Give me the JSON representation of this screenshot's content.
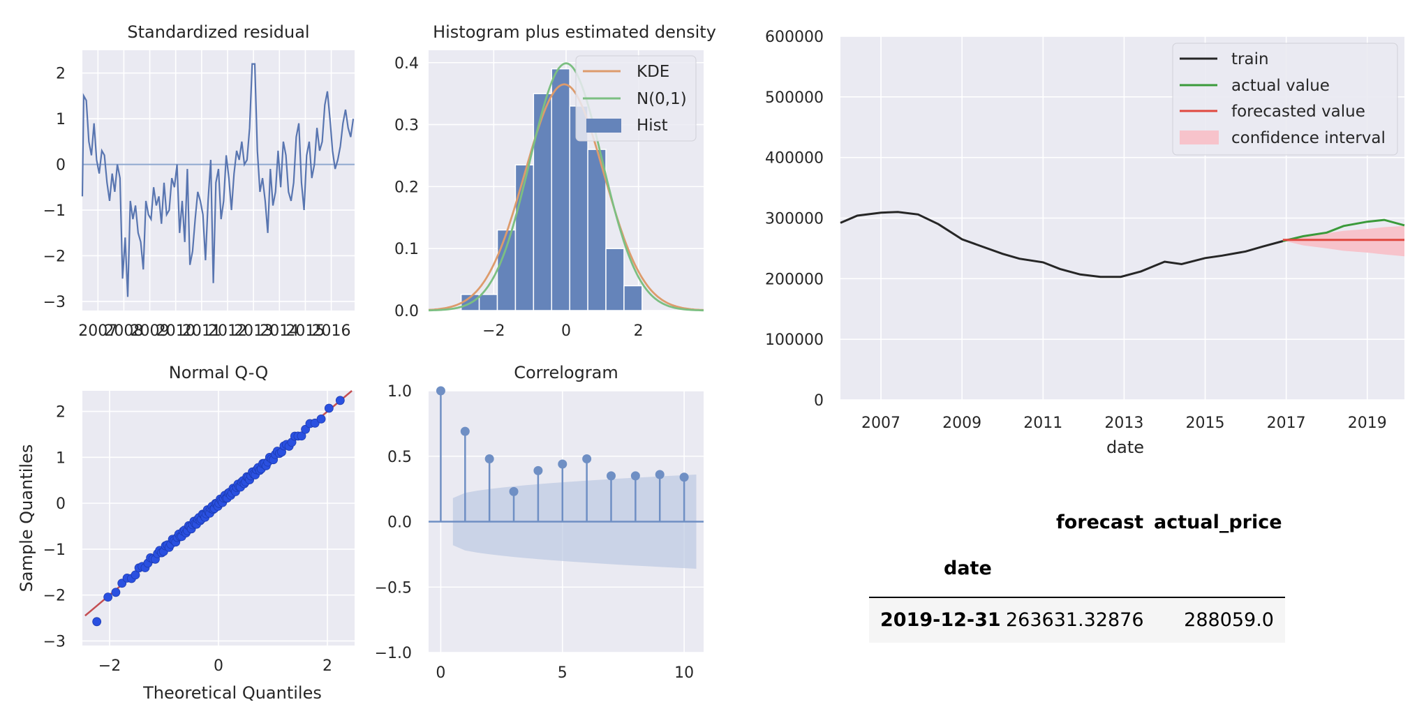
{
  "chart_data": [
    {
      "type": "line",
      "title": "Standardized residual",
      "xlabel": "",
      "ylabel": "",
      "xlim": [
        2006.4,
        2016.9
      ],
      "ylim": [
        -3.2,
        2.5
      ],
      "x_ticks": [
        "2007",
        "2008",
        "2009",
        "2010",
        "2011",
        "2012",
        "2013",
        "2014",
        "2015",
        "2016"
      ],
      "y_ticks": [
        2,
        1,
        0,
        -1,
        -2,
        -3
      ],
      "zero_line": 0,
      "series": [
        {
          "x": [
            2006.4,
            2006.45,
            2006.55,
            2006.65,
            2006.75,
            2006.85,
            2006.95,
            2007.05,
            2007.15,
            2007.25,
            2007.35,
            2007.45,
            2007.55,
            2007.65,
            2007.75,
            2007.85,
            2007.95,
            2008.05,
            2008.15,
            2008.25,
            2008.35,
            2008.45,
            2008.55,
            2008.65,
            2008.75,
            2008.85,
            2008.95,
            2009.05,
            2009.15,
            2009.25,
            2009.35,
            2009.45,
            2009.55,
            2009.65,
            2009.75,
            2009.85,
            2009.95,
            2010.05,
            2010.15,
            2010.25,
            2010.35,
            2010.45,
            2010.55,
            2010.65,
            2010.75,
            2010.85,
            2010.95,
            2011.05,
            2011.15,
            2011.25,
            2011.35,
            2011.45,
            2011.55,
            2011.65,
            2011.75,
            2011.85,
            2011.95,
            2012.05,
            2012.15,
            2012.25,
            2012.35,
            2012.45,
            2012.55,
            2012.65,
            2012.75,
            2012.85,
            2012.95,
            2013.05,
            2013.15,
            2013.25,
            2013.35,
            2013.45,
            2013.55,
            2013.65,
            2013.75,
            2013.85,
            2013.95,
            2014.05,
            2014.15,
            2014.25,
            2014.35,
            2014.45,
            2014.55,
            2014.65,
            2014.75,
            2014.85,
            2014.95,
            2015.05,
            2015.15,
            2015.25,
            2015.35,
            2015.45,
            2015.55,
            2015.65,
            2015.75,
            2015.85,
            2015.95,
            2016.05,
            2016.15,
            2016.25,
            2016.35,
            2016.45,
            2016.55,
            2016.65,
            2016.75,
            2016.85
          ],
          "y": [
            -0.7,
            1.5,
            1.4,
            0.5,
            0.2,
            0.9,
            0.1,
            -0.2,
            0.3,
            0.2,
            -0.4,
            -0.8,
            -0.2,
            -0.6,
            0.0,
            -0.3,
            -2.5,
            -1.6,
            -2.9,
            -0.8,
            -1.2,
            -0.9,
            -1.5,
            -1.7,
            -2.3,
            -0.8,
            -1.1,
            -1.2,
            -0.5,
            -0.9,
            -0.7,
            -1.3,
            -0.4,
            -1.1,
            -1.0,
            -0.3,
            -0.5,
            0.0,
            -1.5,
            -0.8,
            -1.7,
            -0.1,
            -2.2,
            -1.9,
            -1.2,
            -0.6,
            -0.8,
            -1.1,
            -2.1,
            -0.8,
            0.1,
            -2.6,
            -0.4,
            -0.1,
            -1.2,
            -0.8,
            0.2,
            -0.3,
            -1.0,
            -0.2,
            0.3,
            0.1,
            0.5,
            0.0,
            0.1,
            0.8,
            2.2,
            2.2,
            0.3,
            -0.6,
            -0.3,
            -0.8,
            -1.5,
            -0.1,
            -0.9,
            -0.6,
            0.3,
            -0.5,
            0.5,
            0.2,
            -0.6,
            -0.8,
            -0.4,
            0.6,
            0.9,
            -0.4,
            -1.0,
            0.2,
            0.5,
            -0.3,
            0.0,
            0.8,
            0.3,
            0.5,
            1.3,
            1.6,
            1.0,
            0.3,
            -0.1,
            0.1,
            0.4,
            0.9,
            1.2,
            0.8,
            0.6,
            1.0
          ]
        }
      ]
    },
    {
      "type": "bar",
      "title": "Histogram plus estimated density",
      "xlabel": "",
      "ylabel": "",
      "xlim": [
        -3.8,
        3.8
      ],
      "ylim": [
        0,
        0.42
      ],
      "x_ticks": [
        "−2",
        "0",
        "2"
      ],
      "y_ticks": [
        "0.4",
        "0.3",
        "0.2",
        "0.1",
        "0.0"
      ],
      "legend": [
        "KDE",
        "N(0,1)",
        "Hist"
      ],
      "hist_edges": [
        -2.9,
        -2.4,
        -1.9,
        -1.4,
        -0.9,
        -0.4,
        0.1,
        0.6,
        1.1,
        1.6,
        2.1
      ],
      "hist_values": [
        0.026,
        0.026,
        0.13,
        0.235,
        0.35,
        0.39,
        0.33,
        0.26,
        0.1,
        0.04
      ],
      "kde_peak": 0.365,
      "legend_position": "upper right"
    },
    {
      "type": "scatter",
      "title": "Normal Q-Q",
      "xlabel": "Theoretical Quantiles",
      "ylabel": "Sample Quantiles",
      "xlim": [
        -2.5,
        2.5
      ],
      "ylim": [
        -3.1,
        2.45
      ],
      "x_ticks": [
        "−2",
        "0",
        "2"
      ],
      "y_ticks": [
        "2",
        "1",
        "0",
        "−1",
        "−2",
        "−3"
      ],
      "reference_line": {
        "slope": 1,
        "intercept": 0
      }
    },
    {
      "type": "bar",
      "title": "Correlogram",
      "xlabel": "",
      "ylabel": "",
      "xlim": [
        -0.5,
        10.8
      ],
      "ylim": [
        -1.0,
        1.0
      ],
      "x_ticks": [
        "0",
        "5",
        "10"
      ],
      "y_ticks": [
        "1.0",
        "0.5",
        "0.0",
        "−0.5",
        "−1.0"
      ],
      "lags": [
        0,
        1,
        2,
        3,
        4,
        5,
        6,
        7,
        8,
        9,
        10
      ],
      "values": [
        1.0,
        0.69,
        0.48,
        0.23,
        0.39,
        0.44,
        0.48,
        0.35,
        0.35,
        0.36,
        0.34
      ],
      "confidence_band": {
        "from": 0.18,
        "to": 0.36
      }
    },
    {
      "type": "line",
      "title": "",
      "xlabel": "date",
      "ylabel": "",
      "xlim": [
        "2006-01",
        "2019-12"
      ],
      "ylim": [
        0,
        600000
      ],
      "x_ticks": [
        "2007",
        "2009",
        "2011",
        "2013",
        "2015",
        "2017",
        "2019"
      ],
      "y_ticks": [
        "600000",
        "500000",
        "400000",
        "300000",
        "200000",
        "100000",
        "0"
      ],
      "legend": [
        "train",
        "actual value",
        "forecasted value",
        "confidence interval"
      ],
      "legend_position": "upper right",
      "series": [
        {
          "name": "train",
          "color": "#262626",
          "x": [
            "2006-01",
            "2006-06",
            "2007-01",
            "2007-06",
            "2007-12",
            "2008-06",
            "2009-01",
            "2009-06",
            "2010-01",
            "2010-06",
            "2011-01",
            "2011-06",
            "2011-12",
            "2012-06",
            "2012-12",
            "2013-06",
            "2014-01",
            "2014-06",
            "2015-01",
            "2015-06",
            "2016-01",
            "2016-06",
            "2016-12"
          ],
          "y": [
            292000,
            304000,
            309000,
            310000,
            306000,
            290000,
            265000,
            255000,
            241000,
            233000,
            227000,
            216000,
            207000,
            203000,
            203000,
            212000,
            228000,
            224000,
            234000,
            238000,
            245000,
            253000,
            262000
          ]
        },
        {
          "name": "actual value",
          "color": "#3a9a3a",
          "x": [
            "2016-12",
            "2017-06",
            "2018-01",
            "2018-06",
            "2019-01",
            "2019-06",
            "2019-12"
          ],
          "y": [
            262000,
            270000,
            276000,
            287000,
            294000,
            297000,
            288000
          ]
        },
        {
          "name": "forecasted value",
          "color": "#e0483f",
          "x": [
            "2016-12",
            "2017-06",
            "2018-01",
            "2018-06",
            "2019-01",
            "2019-06",
            "2019-12"
          ],
          "y": [
            264000,
            264000,
            264000,
            264000,
            264000,
            264000,
            264000
          ]
        },
        {
          "name": "confidence interval",
          "color": "#f7c3cb",
          "x": [
            "2016-12",
            "2017-06",
            "2018-01",
            "2018-06",
            "2019-01",
            "2019-06",
            "2019-12"
          ],
          "lower": [
            263000,
            255000,
            250000,
            246000,
            243000,
            240000,
            237000
          ],
          "upper": [
            265000,
            270000,
            275000,
            279000,
            282000,
            285000,
            287000
          ]
        }
      ]
    },
    {
      "type": "table",
      "index_name": "date",
      "columns": [
        "forecast",
        "actual_price"
      ],
      "rows": [
        {
          "index": "2019-12-31",
          "forecast": "263631.32876",
          "actual_price": "288059.0"
        }
      ]
    }
  ]
}
